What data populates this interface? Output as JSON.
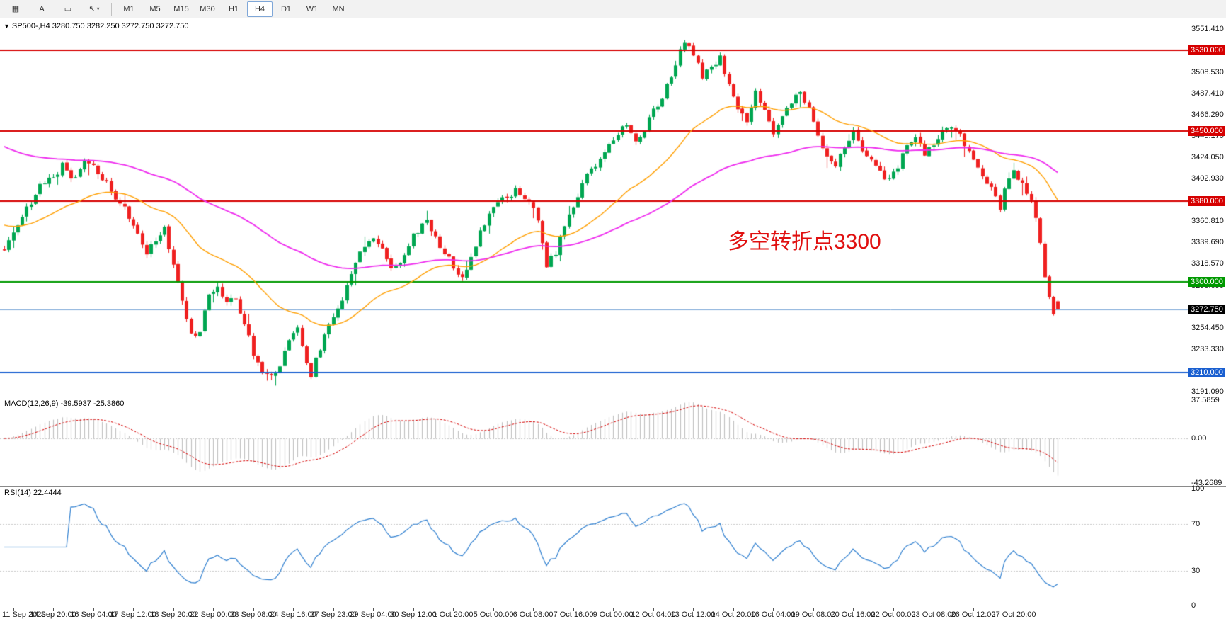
{
  "toolbar": {
    "tools": [
      {
        "name": "chart-grid-icon",
        "glyph": "▦"
      },
      {
        "name": "text-tool",
        "glyph": "A"
      },
      {
        "name": "rectangle-tool",
        "glyph": "▭"
      },
      {
        "name": "cursor-tool",
        "glyph": "↖",
        "caret": "▾"
      }
    ],
    "timeframes": [
      "M1",
      "M5",
      "M15",
      "M30",
      "H1",
      "H4",
      "D1",
      "W1",
      "MN"
    ],
    "selected_timeframe": "H4"
  },
  "chart": {
    "symbol_triangle": "▼",
    "symbol_line": "SP500-,H4  3280.750 3282.250 3272.750 3272.750",
    "annotation": {
      "text": "多空转折点3300",
      "color": "#e01010"
    },
    "price_range": {
      "max": 3562,
      "min": 3186
    },
    "levels": [
      {
        "label": "3530.000",
        "price": 3530.0,
        "color": "#d60000"
      },
      {
        "label": "3450.000",
        "price": 3450.0,
        "color": "#d60000"
      },
      {
        "label": "3380.000",
        "price": 3380.0,
        "color": "#d60000"
      },
      {
        "label": "3300.000",
        "price": 3300.0,
        "color": "#009900"
      },
      {
        "label": "3210.000",
        "price": 3210.0,
        "color": "#1a5fd0"
      }
    ],
    "bid": {
      "label": "3272.750",
      "price": 3272.75,
      "tag_color": "#000000",
      "line_color": "#7ba7d7"
    },
    "axis_ticks": [
      {
        "label": "3551.410",
        "price": 3551.41
      },
      {
        "label": "3508.530",
        "price": 3508.53
      },
      {
        "label": "3487.410",
        "price": 3487.41
      },
      {
        "label": "3466.290",
        "price": 3466.29
      },
      {
        "label": "3445.170",
        "price": 3445.17
      },
      {
        "label": "3424.050",
        "price": 3424.05
      },
      {
        "label": "3402.930",
        "price": 3402.93
      },
      {
        "label": "3360.810",
        "price": 3360.81
      },
      {
        "label": "3339.690",
        "price": 3339.69
      },
      {
        "label": "3318.570",
        "price": 3318.57
      },
      {
        "label": "3296.690",
        "price": 3296.69
      },
      {
        "label": "3254.450",
        "price": 3254.45
      },
      {
        "label": "3233.330",
        "price": 3233.33
      },
      {
        "label": "3191.090",
        "price": 3191.09
      }
    ],
    "candles": {
      "count": 238,
      "seed": 7,
      "up_color": "#00a651",
      "down_color": "#ef2020",
      "last_ohlc": {
        "open": 3280.75,
        "high": 3282.25,
        "low": 3272.75,
        "close": 3272.75
      },
      "waypoints": [
        [
          0,
          3332
        ],
        [
          2,
          3350
        ],
        [
          5,
          3372
        ],
        [
          8,
          3395
        ],
        [
          11,
          3404
        ],
        [
          13,
          3416
        ],
        [
          15,
          3400
        ],
        [
          18,
          3422
        ],
        [
          21,
          3410
        ],
        [
          24,
          3392
        ],
        [
          27,
          3372
        ],
        [
          30,
          3345
        ],
        [
          32,
          3328
        ],
        [
          34,
          3342
        ],
        [
          36,
          3352
        ],
        [
          38,
          3318
        ],
        [
          40,
          3282
        ],
        [
          42,
          3246
        ],
        [
          44,
          3252
        ],
        [
          46,
          3288
        ],
        [
          48,
          3294
        ],
        [
          50,
          3283
        ],
        [
          52,
          3285
        ],
        [
          54,
          3258
        ],
        [
          56,
          3230
        ],
        [
          58,
          3212
        ],
        [
          60,
          3206
        ],
        [
          62,
          3218
        ],
        [
          64,
          3245
        ],
        [
          66,
          3252
        ],
        [
          68,
          3222
        ],
        [
          69,
          3208
        ],
        [
          71,
          3235
        ],
        [
          73,
          3258
        ],
        [
          75,
          3272
        ],
        [
          77,
          3296
        ],
        [
          79,
          3320
        ],
        [
          81,
          3334
        ],
        [
          83,
          3342
        ],
        [
          85,
          3330
        ],
        [
          87,
          3314
        ],
        [
          89,
          3320
        ],
        [
          91,
          3338
        ],
        [
          93,
          3352
        ],
        [
          95,
          3360
        ],
        [
          97,
          3344
        ],
        [
          99,
          3330
        ],
        [
          101,
          3315
        ],
        [
          103,
          3305
        ],
        [
          105,
          3322
        ],
        [
          107,
          3348
        ],
        [
          109,
          3366
        ],
        [
          111,
          3378
        ],
        [
          113,
          3386
        ],
        [
          115,
          3390
        ],
        [
          117,
          3384
        ],
        [
          119,
          3376
        ],
        [
          121,
          3342
        ],
        [
          122,
          3318
        ],
        [
          124,
          3330
        ],
        [
          126,
          3355
        ],
        [
          128,
          3375
        ],
        [
          130,
          3398
        ],
        [
          132,
          3412
        ],
        [
          134,
          3422
        ],
        [
          136,
          3434
        ],
        [
          138,
          3448
        ],
        [
          140,
          3456
        ],
        [
          142,
          3442
        ],
        [
          144,
          3452
        ],
        [
          146,
          3470
        ],
        [
          148,
          3482
        ],
        [
          150,
          3505
        ],
        [
          152,
          3528
        ],
        [
          153,
          3540
        ],
        [
          155,
          3528
        ],
        [
          157,
          3504
        ],
        [
          159,
          3512
        ],
        [
          161,
          3522
        ],
        [
          163,
          3495
        ],
        [
          165,
          3470
        ],
        [
          167,
          3462
        ],
        [
          169,
          3488
        ],
        [
          171,
          3470
        ],
        [
          173,
          3445
        ],
        [
          175,
          3462
        ],
        [
          177,
          3480
        ],
        [
          179,
          3488
        ],
        [
          181,
          3470
        ],
        [
          183,
          3442
        ],
        [
          185,
          3424
        ],
        [
          187,
          3416
        ],
        [
          189,
          3436
        ],
        [
          191,
          3448
        ],
        [
          193,
          3432
        ],
        [
          195,
          3420
        ],
        [
          197,
          3410
        ],
        [
          199,
          3400
        ],
        [
          201,
          3415
        ],
        [
          203,
          3434
        ],
        [
          205,
          3442
        ],
        [
          207,
          3428
        ],
        [
          209,
          3438
        ],
        [
          211,
          3448
        ],
        [
          213,
          3452
        ],
        [
          215,
          3446
        ],
        [
          217,
          3430
        ],
        [
          219,
          3412
        ],
        [
          221,
          3398
        ],
        [
          223,
          3388
        ],
        [
          224,
          3374
        ],
        [
          225,
          3396
        ],
        [
          227,
          3408
        ],
        [
          229,
          3396
        ],
        [
          231,
          3380
        ],
        [
          232,
          3366
        ],
        [
          233,
          3340
        ],
        [
          234,
          3308
        ],
        [
          235,
          3285
        ],
        [
          236,
          3268
        ],
        [
          237,
          3272.75
        ]
      ]
    },
    "moving_averages": [
      {
        "name": "ma-fast",
        "period": 34,
        "init": 3358,
        "color": "#ff9f00",
        "width": 1.4
      },
      {
        "name": "ma-slow",
        "period": 90,
        "init": 3437,
        "color": "#ef2bef",
        "width": 1.8
      }
    ]
  },
  "macd": {
    "header": "MACD(12,26,9) -39.5937 -25.3860",
    "fast": 12,
    "slow": 26,
    "signal": 9,
    "axis": [
      {
        "label": "37.5859",
        "value": 37.5859
      },
      {
        "label": "0.00",
        "value": 0
      },
      {
        "label": "-43.2689",
        "value": -43.2689
      }
    ],
    "hist_color": "#bdbdbd",
    "signal_color": "#d60000",
    "zero_line_color": "#c8c8c8"
  },
  "rsi": {
    "header": "RSI(14) 22.4444",
    "period": 14,
    "axis": [
      {
        "label": "100",
        "value": 100
      },
      {
        "label": "70",
        "value": 70
      },
      {
        "label": "30",
        "value": 30
      },
      {
        "label": "0",
        "value": 0
      }
    ],
    "levels": [
      70,
      30
    ],
    "line_color": "#2e7fd0",
    "level_color": "#c8c8c8"
  },
  "time_axis": {
    "labels": [
      "11 Sep 2020",
      "14 Sep 20:00",
      "16 Sep 04:00",
      "17 Sep 12:00",
      "18 Sep 20:00",
      "22 Sep 00:00",
      "23 Sep 08:00",
      "24 Sep 16:00",
      "27 Sep 23:00",
      "29 Sep 04:00",
      "30 Sep 12:00",
      "1 Oct 20:00",
      "5 Oct 00:00",
      "6 Oct 08:00",
      "7 Oct 16:00",
      "9 Oct 00:00",
      "12 Oct 04:00",
      "13 Oct 12:00",
      "14 Oct 20:00",
      "16 Oct 04:00",
      "19 Oct 08:00",
      "20 Oct 16:00",
      "22 Oct 00:00",
      "23 Oct 08:00",
      "26 Oct 12:00",
      "27 Oct 20:00"
    ]
  }
}
